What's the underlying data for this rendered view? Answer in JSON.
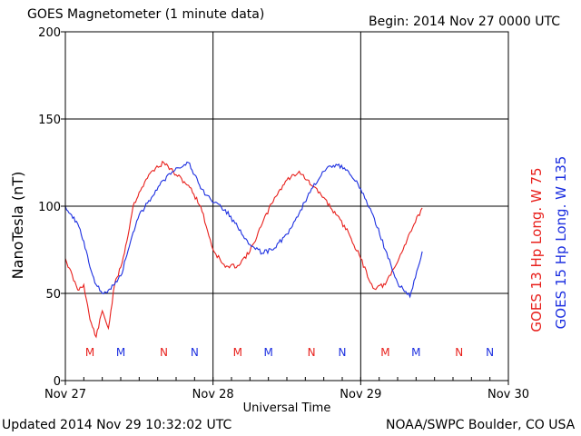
{
  "header": {
    "title": "GOES Magnetometer (1 minute data)",
    "begin": "Begin:  2014 Nov 27 0000 UTC"
  },
  "footer": {
    "updated": "Updated 2014 Nov 29 10:32:02 UTC",
    "credit": "NOAA/SWPC Boulder, CO USA"
  },
  "colors": {
    "red": "#e8201c",
    "blue": "#1c2fe0",
    "grid": "#000000",
    "background": "#ffffff"
  },
  "chart_data": {
    "type": "line",
    "xlabel": "Universal Time",
    "ylabel": "NanoTesla (nT)",
    "ylim": [
      0,
      200
    ],
    "yticks": [
      "0",
      "50",
      "100",
      "150",
      "200"
    ],
    "xlim": [
      "2014-11-27 00:00",
      "2014-11-30 00:00"
    ],
    "xticks": [
      "Nov 27",
      "Nov 28",
      "Nov 29",
      "Nov 30"
    ],
    "grid": true,
    "legend_position": "right-vertical",
    "series": [
      {
        "name": "GOES 13 Hp  Long. W 75",
        "color": "#e8201c",
        "x": [
          "2014-11-27 00:00",
          "2014-11-27 02:00",
          "2014-11-27 03:00",
          "2014-11-27 04:00",
          "2014-11-27 05:00",
          "2014-11-27 06:00",
          "2014-11-27 07:00",
          "2014-11-27 08:00",
          "2014-11-27 09:00",
          "2014-11-27 10:00",
          "2014-11-27 11:00",
          "2014-11-27 12:00",
          "2014-11-27 14:00",
          "2014-11-27 16:00",
          "2014-11-27 18:00",
          "2014-11-27 20:00",
          "2014-11-27 22:00",
          "2014-11-28 00:00",
          "2014-11-28 02:00",
          "2014-11-28 04:00",
          "2014-11-28 06:00",
          "2014-11-28 08:00",
          "2014-11-28 10:00",
          "2014-11-28 12:00",
          "2014-11-28 14:00",
          "2014-11-28 16:00",
          "2014-11-28 18:00",
          "2014-11-28 20:00",
          "2014-11-28 22:00",
          "2014-11-29 00:00",
          "2014-11-29 02:00",
          "2014-11-29 04:00",
          "2014-11-29 06:00",
          "2014-11-29 08:00",
          "2014-11-29 10:00"
        ],
        "y": [
          70,
          52,
          55,
          35,
          25,
          40,
          30,
          55,
          65,
          80,
          100,
          108,
          120,
          125,
          118,
          112,
          100,
          75,
          65,
          66,
          74,
          90,
          105,
          115,
          120,
          112,
          105,
          95,
          85,
          70,
          53,
          55,
          68,
          85,
          99
        ]
      },
      {
        "name": "GOES 15 Hp  Long. W 135",
        "color": "#1c2fe0",
        "x": [
          "2014-11-27 00:00",
          "2014-11-27 01:00",
          "2014-11-27 02:00",
          "2014-11-27 03:00",
          "2014-11-27 04:00",
          "2014-11-27 05:00",
          "2014-11-27 06:00",
          "2014-11-27 07:00",
          "2014-11-27 08:00",
          "2014-11-27 09:00",
          "2014-11-27 10:00",
          "2014-11-27 11:00",
          "2014-11-27 12:00",
          "2014-11-27 14:00",
          "2014-11-27 16:00",
          "2014-11-27 18:00",
          "2014-11-27 20:00",
          "2014-11-27 21:00",
          "2014-11-27 22:00",
          "2014-11-28 00:00",
          "2014-11-28 02:00",
          "2014-11-28 04:00",
          "2014-11-28 06:00",
          "2014-11-28 08:00",
          "2014-11-28 10:00",
          "2014-11-28 12:00",
          "2014-11-28 14:00",
          "2014-11-28 16:00",
          "2014-11-28 18:00",
          "2014-11-28 20:00",
          "2014-11-28 22:00",
          "2014-11-29 00:00",
          "2014-11-29 02:00",
          "2014-11-29 04:00",
          "2014-11-29 06:00",
          "2014-11-29 08:00",
          "2014-11-29 10:00"
        ],
        "y": [
          100,
          95,
          90,
          80,
          65,
          55,
          50,
          52,
          55,
          60,
          72,
          85,
          95,
          105,
          115,
          122,
          125,
          118,
          110,
          102,
          98,
          88,
          78,
          73,
          76,
          84,
          96,
          110,
          120,
          124,
          120,
          110,
          95,
          75,
          56,
          48,
          74
        ]
      }
    ],
    "annotations": [
      {
        "text": "M",
        "x": "2014-11-27 04:00",
        "color": "#e8201c"
      },
      {
        "text": "M",
        "x": "2014-11-27 09:00",
        "color": "#1c2fe0"
      },
      {
        "text": "N",
        "x": "2014-11-27 16:00",
        "color": "#e8201c"
      },
      {
        "text": "N",
        "x": "2014-11-27 21:00",
        "color": "#1c2fe0"
      },
      {
        "text": "M",
        "x": "2014-11-28 04:00",
        "color": "#e8201c"
      },
      {
        "text": "M",
        "x": "2014-11-28 09:00",
        "color": "#1c2fe0"
      },
      {
        "text": "N",
        "x": "2014-11-28 16:00",
        "color": "#e8201c"
      },
      {
        "text": "N",
        "x": "2014-11-28 21:00",
        "color": "#1c2fe0"
      },
      {
        "text": "M",
        "x": "2014-11-29 04:00",
        "color": "#e8201c"
      },
      {
        "text": "M",
        "x": "2014-11-29 09:00",
        "color": "#1c2fe0"
      },
      {
        "text": "N",
        "x": "2014-11-29 16:00",
        "color": "#e8201c"
      },
      {
        "text": "N",
        "x": "2014-11-29 21:00",
        "color": "#1c2fe0"
      }
    ]
  }
}
